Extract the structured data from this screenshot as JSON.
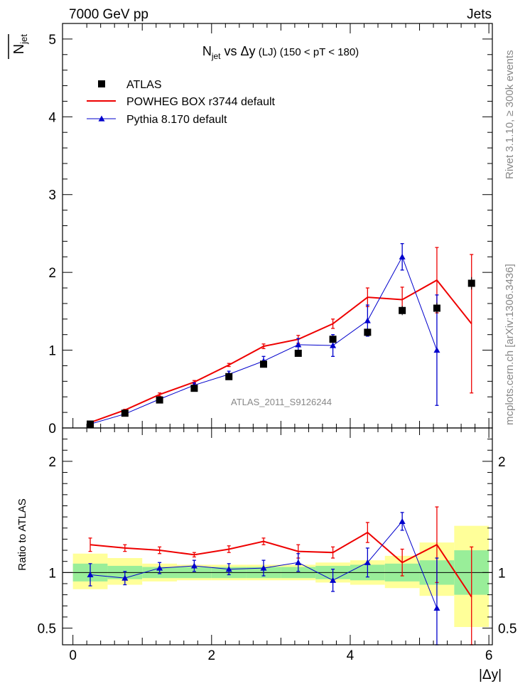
{
  "header": {
    "energy": "7000 GeV pp",
    "process": "Jets"
  },
  "side_labels": {
    "rivet": "Rivet 3.1.10, ≥ 300k events",
    "mcplots": "mcplots.cern.ch [arXiv:1306.3436]"
  },
  "analysis_tag": "ATLAS_2011_S9126244",
  "chart_data": [
    {
      "type": "line",
      "panel": "main",
      "title": {
        "n": "N",
        "sub": "jet",
        "rest": " vs Δy",
        "small": " (LJ)",
        "range": " (150 < pT < 180)"
      },
      "ylabel": {
        "text": "N",
        "sub": "jet"
      },
      "xlim": [
        -0.15,
        6.05
      ],
      "ylim": [
        0,
        5.2
      ],
      "yticks": [
        "0",
        "1",
        "2",
        "3",
        "4",
        "5"
      ],
      "legend": {
        "placement": "top-left",
        "entries": [
          "ATLAS",
          "POWHEG BOX r3744 default",
          "Pythia 8.170 default"
        ]
      },
      "colors": {
        "data": "#000000",
        "powheg": "#ee0000",
        "pythia": "#0000cc"
      },
      "x": [
        0.25,
        0.75,
        1.25,
        1.75,
        2.25,
        2.75,
        3.25,
        3.75,
        4.25,
        4.75,
        5.25,
        5.75
      ],
      "series": [
        {
          "name": "ATLAS",
          "style": "marker",
          "values": [
            0.05,
            0.19,
            0.36,
            0.51,
            0.66,
            0.82,
            0.96,
            1.14,
            1.23,
            1.51,
            1.54,
            1.86
          ],
          "errors": [
            0.01,
            0.01,
            0.02,
            0.02,
            0.02,
            0.03,
            0.03,
            0.04,
            0.05,
            0.06,
            0.07,
            0.08
          ]
        },
        {
          "name": "POWHEG BOX r3744 default",
          "style": "step",
          "values": [
            0.07,
            0.23,
            0.43,
            0.59,
            0.81,
            1.05,
            1.14,
            1.34,
            1.68,
            1.65,
            1.9,
            1.34
          ],
          "errors": [
            0.01,
            0.01,
            0.02,
            0.02,
            0.02,
            0.03,
            0.05,
            0.06,
            0.12,
            0.16,
            0.42,
            0.89
          ]
        },
        {
          "name": "Pythia 8.170 default",
          "style": "line-triangle",
          "values": [
            0.05,
            0.18,
            0.37,
            0.55,
            0.69,
            0.86,
            1.07,
            1.06,
            1.38,
            2.2,
            1.0,
            null
          ],
          "errors": [
            0.01,
            0.01,
            0.02,
            0.03,
            0.04,
            0.06,
            0.08,
            0.14,
            0.2,
            0.17,
            0.71,
            null
          ]
        }
      ]
    },
    {
      "type": "line",
      "panel": "ratio",
      "ylabel": "Ratio to ATLAS",
      "xlabel": "|Δy|",
      "xlim": [
        -0.15,
        6.05
      ],
      "ylim": [
        0.35,
        2.3
      ],
      "yticks": [
        "0.5",
        "1",
        "2"
      ],
      "xticks": [
        "0",
        "2",
        "4",
        "6"
      ],
      "bins": [
        [
          -0.0,
          0.5
        ],
        [
          0.5,
          1.0
        ],
        [
          1.0,
          1.5
        ],
        [
          1.5,
          2.0
        ],
        [
          2.0,
          2.5
        ],
        [
          2.5,
          3.0
        ],
        [
          3.0,
          3.5
        ],
        [
          3.5,
          4.0
        ],
        [
          4.0,
          4.5
        ],
        [
          4.5,
          5.0
        ],
        [
          5.0,
          5.5
        ],
        [
          5.5,
          6.0
        ]
      ],
      "band_inner": [
        [
          0.92,
          1.08
        ],
        [
          0.94,
          1.06
        ],
        [
          0.95,
          1.05
        ],
        [
          0.95,
          1.05
        ],
        [
          0.95,
          1.05
        ],
        [
          0.95,
          1.05
        ],
        [
          0.95,
          1.05
        ],
        [
          0.94,
          1.06
        ],
        [
          0.93,
          1.07
        ],
        [
          0.92,
          1.08
        ],
        [
          0.89,
          1.11
        ],
        [
          0.8,
          1.2
        ]
      ],
      "band_outer": [
        [
          0.85,
          1.17
        ],
        [
          0.89,
          1.13
        ],
        [
          0.92,
          1.08
        ],
        [
          0.93,
          1.07
        ],
        [
          0.93,
          1.07
        ],
        [
          0.93,
          1.07
        ],
        [
          0.93,
          1.07
        ],
        [
          0.91,
          1.09
        ],
        [
          0.89,
          1.11
        ],
        [
          0.86,
          1.15
        ],
        [
          0.79,
          1.27
        ],
        [
          0.51,
          1.42
        ]
      ],
      "x": [
        0.25,
        0.75,
        1.25,
        1.75,
        2.25,
        2.75,
        3.25,
        3.75,
        4.25,
        4.75,
        5.25,
        5.75
      ],
      "series": [
        {
          "name": "POWHEG BOX r3744 default",
          "values": [
            1.25,
            1.22,
            1.2,
            1.16,
            1.21,
            1.28,
            1.19,
            1.18,
            1.36,
            1.09,
            1.25,
            0.78
          ],
          "errors": [
            0.06,
            0.03,
            0.03,
            0.02,
            0.03,
            0.03,
            0.06,
            0.05,
            0.09,
            0.12,
            0.34,
            0.45
          ]
        },
        {
          "name": "Pythia 8.170 default",
          "values": [
            0.98,
            0.95,
            1.04,
            1.06,
            1.03,
            1.04,
            1.09,
            0.93,
            1.09,
            1.46,
            0.68,
            null
          ],
          "errors": [
            0.1,
            0.06,
            0.05,
            0.05,
            0.05,
            0.07,
            0.08,
            0.1,
            0.13,
            0.08,
            0.45,
            null
          ]
        }
      ]
    }
  ]
}
